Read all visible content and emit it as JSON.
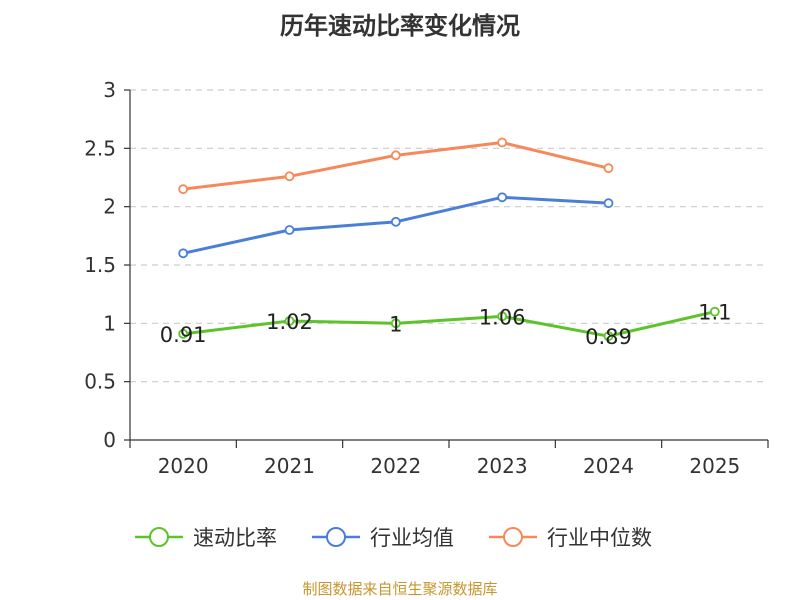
{
  "chart_data": {
    "type": "line",
    "title": "历年速动比率变化情况",
    "categories": [
      "2020",
      "2021",
      "2022",
      "2023",
      "2024",
      "2025"
    ],
    "ylim": [
      0,
      3
    ],
    "yticks": [
      0,
      0.5,
      1,
      1.5,
      2,
      2.5,
      3
    ],
    "ytick_labels": [
      "0",
      "0.5",
      "1",
      "1.5",
      "2",
      "2.5",
      "3"
    ],
    "grid": true,
    "legend_position": "bottom",
    "series": [
      {
        "name": "速动比率",
        "color": "#5cc42a",
        "values": [
          0.91,
          1.02,
          1.0,
          1.06,
          0.89,
          1.1
        ],
        "labels": [
          "0.91",
          "1.02",
          "1",
          "1.06",
          "0.89",
          "1.1"
        ]
      },
      {
        "name": "行业均值",
        "color": "#4a7fd8",
        "values": [
          1.6,
          1.8,
          1.87,
          2.08,
          2.03,
          null
        ]
      },
      {
        "name": "行业中位数",
        "color": "#f5895a",
        "values": [
          2.15,
          2.26,
          2.44,
          2.55,
          2.33,
          null
        ]
      }
    ]
  },
  "footer": {
    "source": "制图数据来自恒生聚源数据库"
  }
}
